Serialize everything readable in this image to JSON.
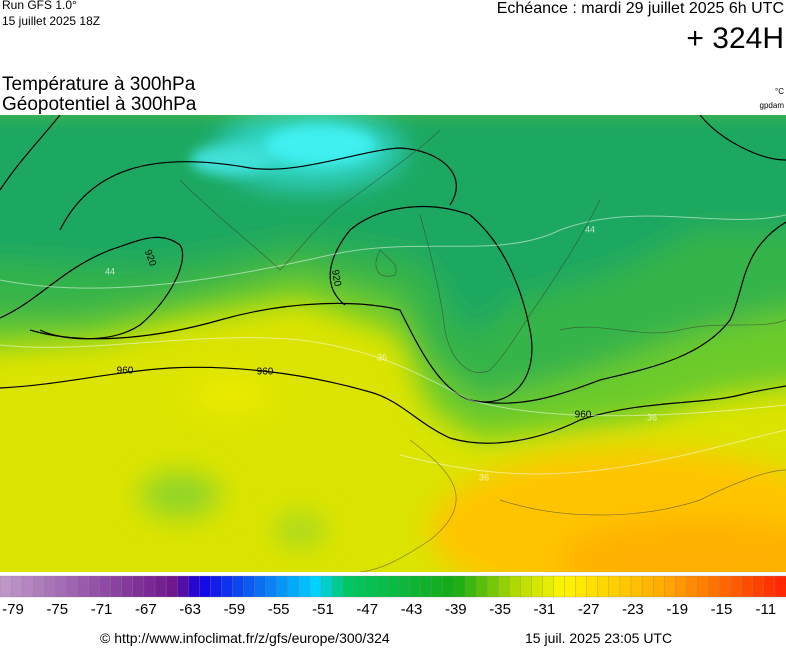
{
  "header": {
    "run": "Run GFS 1.0°",
    "run_date": "15 juillet 2025 18Z",
    "valid": "Echéance : mardi 29 juillet 2025 6h UTC",
    "lead": "+ 324H",
    "title_1": "Température à 300hPa",
    "title_2": "Géopotentiel à 300hPa",
    "unit_1": "°C",
    "unit_2": "gpdam"
  },
  "map": {
    "contour_labels": [
      "920",
      "920",
      "960",
      "960",
      "960"
    ],
    "isotherm_labels": [
      "44",
      "44",
      "36",
      "36",
      "36"
    ]
  },
  "colorbar": {
    "ticks": [
      -79,
      -75,
      -71,
      -67,
      -63,
      -59,
      -55,
      -51,
      -47,
      -43,
      -39,
      -35,
      -31,
      -27,
      -23,
      -19,
      -15,
      -11
    ]
  },
  "footer": {
    "source": "© http://www.infoclimat.fr/z/gfs/europe/300/324",
    "generated": "15 juil. 2025 23:05 UTC"
  }
}
